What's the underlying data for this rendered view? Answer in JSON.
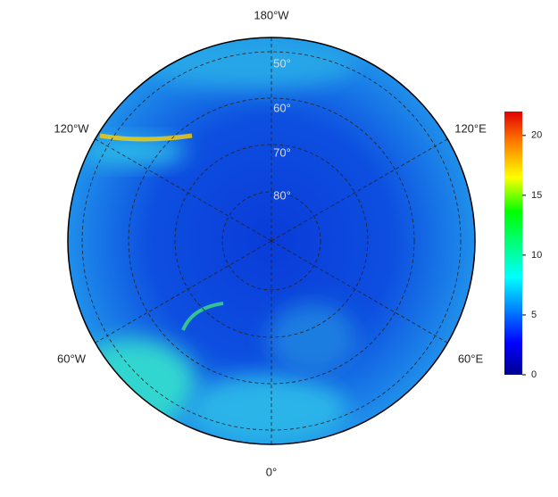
{
  "map": {
    "longitude_labels": [
      "180°W",
      "120°W",
      "120°E",
      "60°W",
      "60°E",
      "0°"
    ],
    "latitude_labels": [
      "50°",
      "60°",
      "70°",
      "80°"
    ]
  },
  "colorbar": {
    "lim": [
      0,
      22
    ],
    "ticks": [
      0,
      5,
      10,
      15,
      20
    ]
  }
}
